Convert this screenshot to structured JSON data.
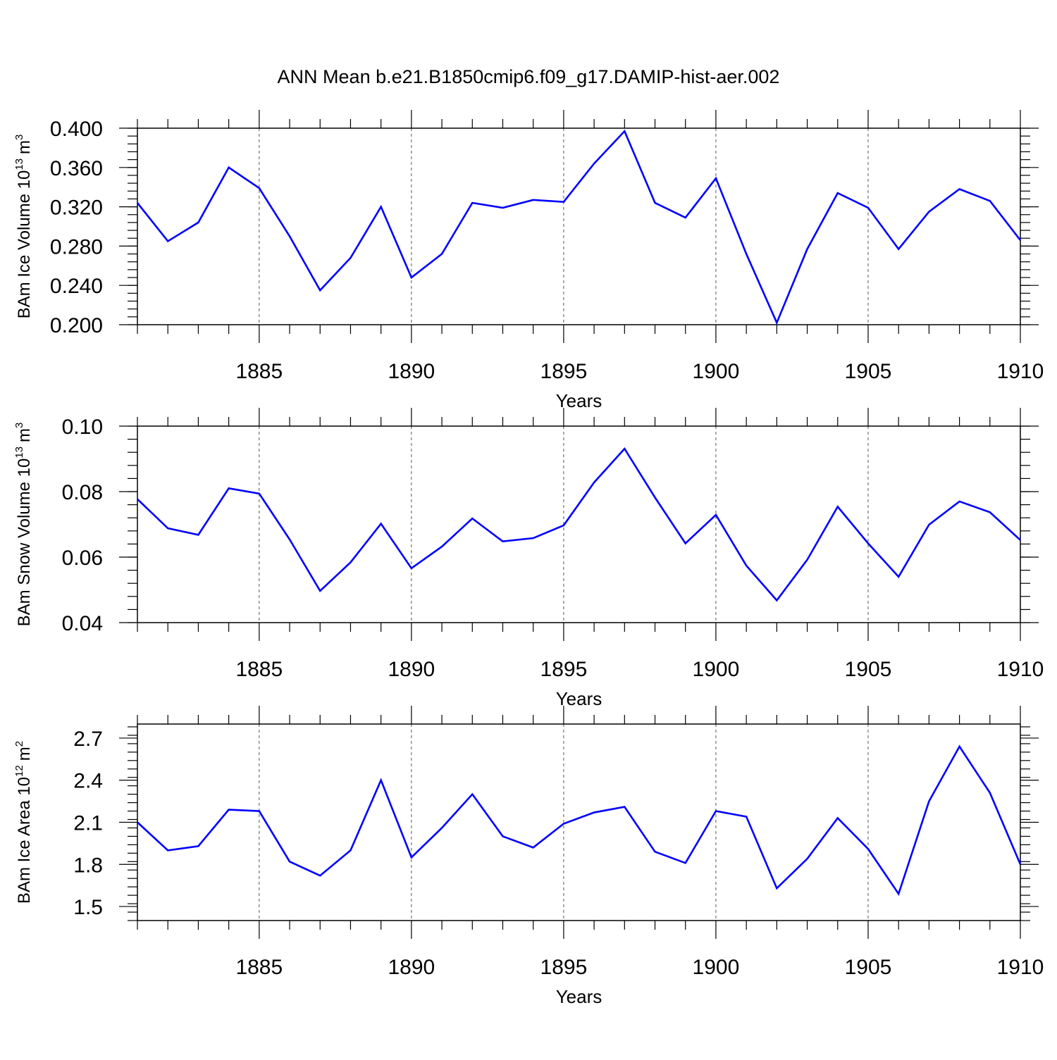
{
  "title": "ANN Mean b.e21.B1850cmip6.f09_g17.DAMIP-hist-aer.002",
  "colors": {
    "line": "#0000ff",
    "axis": "#000000",
    "grid": "#555555"
  },
  "chart_data": [
    {
      "type": "line",
      "ylabel_main": "BAm Ice Volume 10",
      "ylabel_exp": "13",
      "ylabel_unit": "m",
      "ylabel_unit_exp": "3",
      "xlabel": "Years",
      "xlim": [
        1881,
        1910
      ],
      "ylim": [
        0.2,
        0.4
      ],
      "yticks": [
        0.2,
        0.24,
        0.28,
        0.32,
        0.36,
        0.4
      ],
      "ytick_labels": [
        "0.200",
        "0.240",
        "0.280",
        "0.320",
        "0.360",
        "0.400"
      ],
      "yminor_step": 0.008,
      "xticks": [
        1885,
        1890,
        1895,
        1900,
        1905,
        1910
      ],
      "xtick_labels": [
        "1885",
        "1890",
        "1895",
        "1900",
        "1905",
        "1910"
      ],
      "x": [
        1881,
        1882,
        1883,
        1884,
        1885,
        1886,
        1887,
        1888,
        1889,
        1890,
        1891,
        1892,
        1893,
        1894,
        1895,
        1896,
        1897,
        1898,
        1899,
        1900,
        1901,
        1902,
        1903,
        1904,
        1905,
        1906,
        1907,
        1908,
        1909,
        1910
      ],
      "values": [
        0.324,
        0.285,
        0.304,
        0.36,
        0.339,
        0.29,
        0.235,
        0.268,
        0.32,
        0.248,
        0.272,
        0.324,
        0.319,
        0.327,
        0.325,
        0.364,
        0.397,
        0.324,
        0.309,
        0.349,
        0.272,
        0.202,
        0.277,
        0.334,
        0.319,
        0.277,
        0.315,
        0.338,
        0.326,
        0.286
      ]
    },
    {
      "type": "line",
      "ylabel_main": "BAm Snow Volume 10",
      "ylabel_exp": "13",
      "ylabel_unit": "m",
      "ylabel_unit_exp": "3",
      "xlabel": "Years",
      "xlim": [
        1881,
        1910
      ],
      "ylim": [
        0.04,
        0.1
      ],
      "yticks": [
        0.04,
        0.06,
        0.08,
        0.1
      ],
      "ytick_labels": [
        "0.04",
        "0.06",
        "0.08",
        "0.10"
      ],
      "yminor_step": 0.004,
      "xticks": [
        1885,
        1890,
        1895,
        1900,
        1905,
        1910
      ],
      "xtick_labels": [
        "1885",
        "1890",
        "1895",
        "1900",
        "1905",
        "1910"
      ],
      "x": [
        1881,
        1882,
        1883,
        1884,
        1885,
        1886,
        1887,
        1888,
        1889,
        1890,
        1891,
        1892,
        1893,
        1894,
        1895,
        1896,
        1897,
        1898,
        1899,
        1900,
        1901,
        1902,
        1903,
        1904,
        1905,
        1906,
        1907,
        1908,
        1909,
        1910
      ],
      "values": [
        0.0777,
        0.0688,
        0.0668,
        0.081,
        0.0794,
        0.0654,
        0.0497,
        0.0584,
        0.0702,
        0.0566,
        0.0632,
        0.0718,
        0.0648,
        0.0658,
        0.0697,
        0.0828,
        0.0931,
        0.0782,
        0.0642,
        0.0729,
        0.0574,
        0.0468,
        0.0592,
        0.0754,
        0.0642,
        0.054,
        0.0699,
        0.077,
        0.0737,
        0.0652
      ]
    },
    {
      "type": "line",
      "ylabel_main": "BAm Ice Area 10",
      "ylabel_exp": "12",
      "ylabel_unit": "m",
      "ylabel_unit_exp": "2",
      "xlabel": "Years",
      "xlim": [
        1881,
        1910
      ],
      "ylim": [
        1.4,
        2.8
      ],
      "yticks": [
        1.5,
        1.8,
        2.1,
        2.4,
        2.7
      ],
      "ytick_labels": [
        "1.5",
        "1.8",
        "2.1",
        "2.4",
        "2.7"
      ],
      "yminor_step": 0.06,
      "xticks": [
        1885,
        1890,
        1895,
        1900,
        1905,
        1910
      ],
      "xtick_labels": [
        "1885",
        "1890",
        "1895",
        "1900",
        "1905",
        "1910"
      ],
      "x": [
        1881,
        1882,
        1883,
        1884,
        1885,
        1886,
        1887,
        1888,
        1889,
        1890,
        1891,
        1892,
        1893,
        1894,
        1895,
        1896,
        1897,
        1898,
        1899,
        1900,
        1901,
        1902,
        1903,
        1904,
        1905,
        1906,
        1907,
        1908,
        1909,
        1910
      ],
      "values": [
        2.1,
        1.9,
        1.93,
        2.19,
        2.18,
        1.82,
        1.72,
        1.9,
        2.4,
        1.85,
        2.06,
        2.3,
        2.0,
        1.92,
        2.09,
        2.17,
        2.21,
        1.89,
        1.81,
        2.18,
        2.14,
        1.63,
        1.84,
        2.13,
        1.91,
        1.59,
        2.25,
        2.64,
        2.31,
        1.8
      ]
    }
  ]
}
